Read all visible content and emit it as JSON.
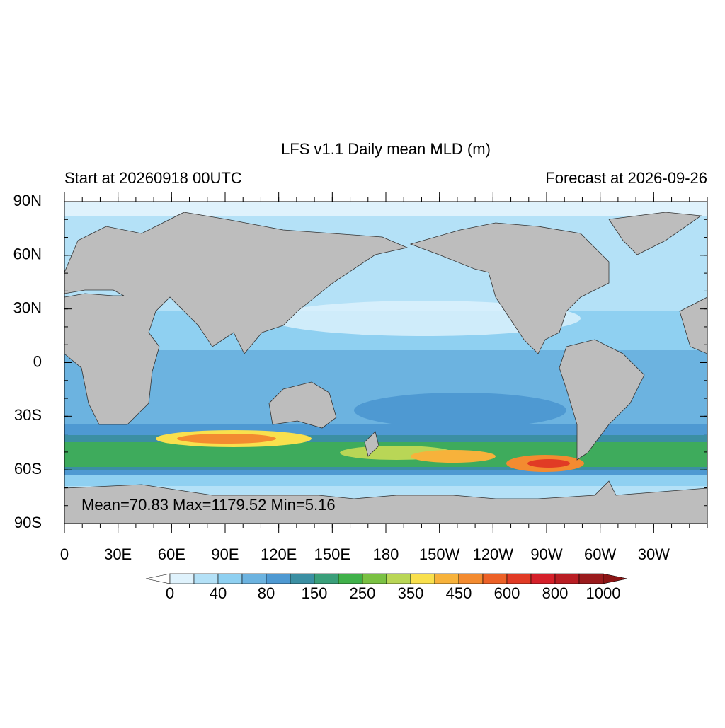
{
  "title": "LFS v1.1 Daily mean MLD (m)",
  "left_subtitle": "Start at 20260918 00UTC",
  "right_subtitle": "Forecast at 2026-09-26",
  "lat_labels": [
    "90N",
    "60N",
    "30N",
    "0",
    "30S",
    "60S",
    "90S"
  ],
  "lon_labels": [
    "0",
    "30E",
    "60E",
    "90E",
    "120E",
    "150E",
    "180",
    "150W",
    "120W",
    "90W",
    "60W",
    "30W"
  ],
  "stats": "Mean=70.83  Max=1179.52  Min=5.16",
  "colorbar": {
    "labels": [
      "0",
      "40",
      "80",
      "150",
      "250",
      "350",
      "450",
      "600",
      "800",
      "1000"
    ],
    "colors": [
      "#dff2fc",
      "#b4e1f7",
      "#8fd0f1",
      "#6cb3e0",
      "#4e99d2",
      "#3b8fa3",
      "#3a9f7a",
      "#40b14a",
      "#7ac143",
      "#b9d656",
      "#f9e04d",
      "#f7b23b",
      "#f38b30",
      "#ec6127",
      "#e13b25",
      "#d5202a",
      "#b91d23",
      "#9a1a1c"
    ],
    "under_color": "#ffffff",
    "over_color": "#8c1515"
  }
}
